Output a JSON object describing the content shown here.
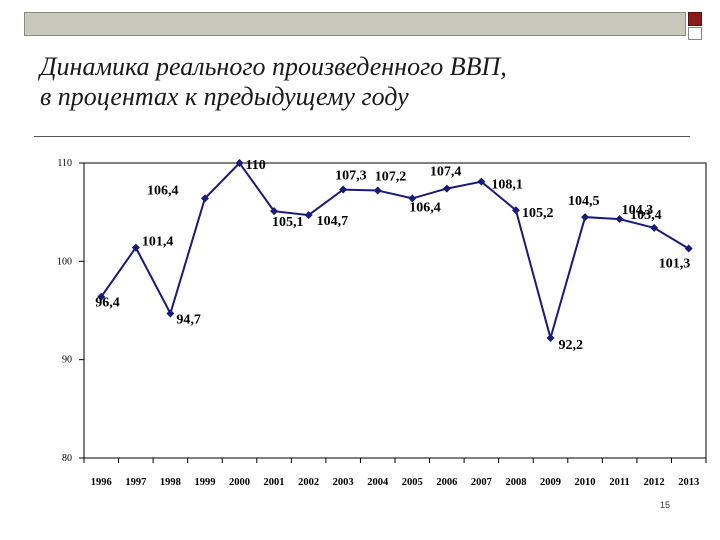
{
  "slide": {
    "title_lines": [
      "Динамика реального произведенного ВВП,",
      "в процентах к предыдущему году"
    ],
    "page_number": "15"
  },
  "colors": {
    "series": "#1a1a7a",
    "frame": "#c8c8bc",
    "accent": "#8b1a1a"
  },
  "chart_data": {
    "type": "line",
    "title": "",
    "xlabel": "",
    "ylabel": "",
    "ylim": [
      80,
      110
    ],
    "y_ticks": [
      "80",
      "90",
      "100",
      "110"
    ],
    "grid": false,
    "categories": [
      "1996",
      "1997",
      "1998",
      "1999",
      "2000",
      "2001",
      "2002",
      "2003",
      "2004",
      "2005",
      "2006",
      "2007",
      "2008",
      "2009",
      "2010",
      "2011",
      "2012",
      "2013"
    ],
    "values": [
      96.4,
      101.4,
      94.7,
      106.4,
      110,
      105.1,
      104.7,
      107.3,
      107.2,
      106.4,
      107.4,
      108.1,
      105.2,
      92.2,
      104.5,
      104.3,
      103.4,
      101.3
    ],
    "data_labels": [
      "96,4",
      "101,4",
      "94,7",
      "106,4",
      "110",
      "105,1",
      "104,7",
      "107,3",
      "107,2",
      "106,4",
      "107,4",
      "108,1",
      "105,2",
      "92,2",
      "104,5",
      "104,3",
      "103,4",
      "101,3"
    ]
  }
}
